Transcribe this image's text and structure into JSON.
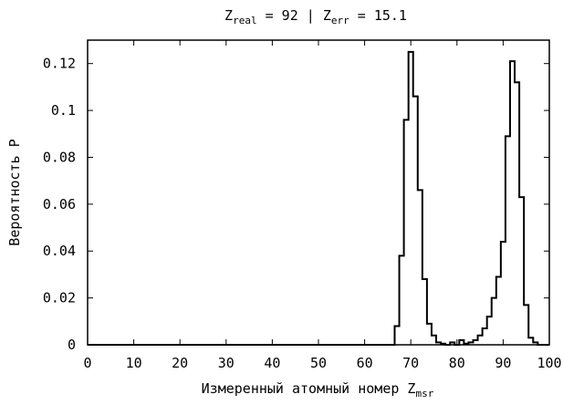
{
  "chart_data": {
    "type": "line",
    "style": "step-histogram",
    "title": {
      "parts": [
        {
          "text": "Z"
        },
        {
          "text": "real",
          "sub": true
        },
        {
          "text": " = 92 | Z"
        },
        {
          "text": "err",
          "sub": true
        },
        {
          "text": " = 15.1"
        }
      ]
    },
    "xlabel": {
      "parts": [
        {
          "text": "Измеренный атомный номер Z"
        },
        {
          "text": "msr",
          "sub": true
        }
      ]
    },
    "ylabel": "Вероятность P",
    "xlim": [
      0,
      100
    ],
    "ylim": [
      0,
      0.13
    ],
    "xticks": [
      0,
      10,
      20,
      30,
      40,
      50,
      60,
      70,
      80,
      90,
      100
    ],
    "xtick_labels": [
      "0",
      "10",
      "20",
      "30",
      "40",
      "50",
      "60",
      "70",
      "80",
      "90",
      "100"
    ],
    "yticks": [
      0,
      0.02,
      0.04,
      0.06,
      0.08,
      0.1,
      0.12
    ],
    "ytick_labels": [
      "0",
      "0.02",
      "0.04",
      "0.06",
      "0.08",
      "0.1",
      "0.12"
    ],
    "grid": false,
    "legend": "none",
    "line_color": "#000000",
    "x": [
      64,
      65,
      66,
      67,
      68,
      69,
      70,
      71,
      72,
      73,
      74,
      75,
      76,
      77,
      78,
      79,
      80,
      81,
      82,
      83,
      84,
      85,
      86,
      87,
      88,
      89,
      90,
      91,
      92,
      93,
      94,
      95,
      96,
      97
    ],
    "y": [
      0,
      0,
      0,
      0.008,
      0.038,
      0.096,
      0.125,
      0.106,
      0.066,
      0.028,
      0.009,
      0.004,
      0.001,
      0.0005,
      0,
      0.001,
      0,
      0.002,
      0.0005,
      0.001,
      0.002,
      0.004,
      0.007,
      0.012,
      0.02,
      0.029,
      0.044,
      0.089,
      0.121,
      0.112,
      0.063,
      0.017,
      0.003,
      0.001
    ]
  }
}
